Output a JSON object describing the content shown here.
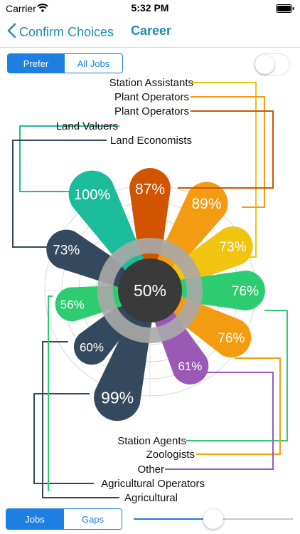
{
  "status_bar": {
    "carrier": "Carrier",
    "time": "5:32 PM"
  },
  "nav": {
    "back_label": "Confirm Choices",
    "title": "Career"
  },
  "top_segment": {
    "options": [
      "Prefer",
      "All Jobs"
    ],
    "selected": 0
  },
  "toggle": {
    "on": false
  },
  "center": {
    "value": "50%",
    "color": "#3a3a3a"
  },
  "petals": [
    {
      "value": "87%",
      "color": "#d35400"
    },
    {
      "value": "89%",
      "color": "#f39c12"
    },
    {
      "value": "73%",
      "color": "#f1c40f"
    },
    {
      "value": "76%",
      "color": "#2ecc71"
    },
    {
      "value": "76%",
      "color": "#f39c12"
    },
    {
      "value": "61%",
      "color": "#9b59b6"
    },
    {
      "value": "99%",
      "color": "#34495e"
    },
    {
      "value": "60%",
      "color": "#34495e"
    },
    {
      "value": "56%",
      "color": "#2ecc71"
    },
    {
      "value": "73%",
      "color": "#34495e"
    },
    {
      "value": "100%",
      "color": "#1abc9c"
    }
  ],
  "top_labels": [
    {
      "text": "Station Assistants",
      "color": "#f1c40f"
    },
    {
      "text": "Plant Operators",
      "color": "#f39c12"
    },
    {
      "text": "Plant Operators",
      "color": "#d35400"
    },
    {
      "text": "Land Valuers",
      "color": "#1abc9c"
    },
    {
      "text": "Land Economists",
      "color": "#34495e"
    }
  ],
  "bottom_labels": [
    {
      "text": "Station Agents",
      "color": "#2ecc71"
    },
    {
      "text": "Zoologists",
      "color": "#f39c12"
    },
    {
      "text": "Other",
      "color": "#9b59b6"
    },
    {
      "text": "Agricultural Operators",
      "color": "#34495e"
    },
    {
      "text": "Agricultural",
      "color": "#34495e"
    }
  ],
  "bottom_segment": {
    "options": [
      "Jobs",
      "Gaps"
    ],
    "selected": 0
  },
  "slider": {
    "value": 0.5
  }
}
